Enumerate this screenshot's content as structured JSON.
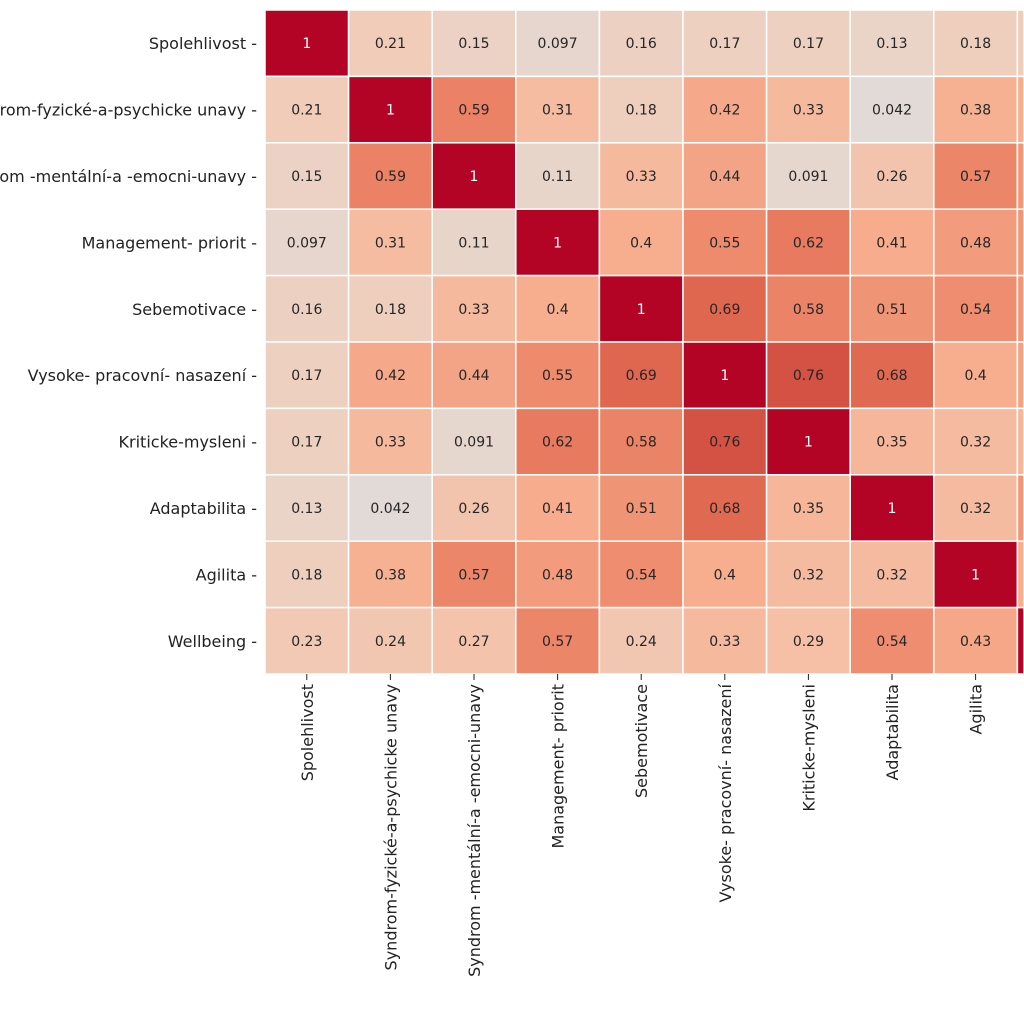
{
  "chart_data": {
    "type": "heatmap",
    "title": "",
    "colormap": "coolwarm",
    "vmin": -1,
    "vmax": 1,
    "colors": {
      "low": "#3b4cc0",
      "mid": "#dddddd",
      "high": "#b40426",
      "cell_border": "#ffffff"
    },
    "row_labels": [
      "Spolehlivost",
      "Syndrom-fyzické-a-psychicke unavy",
      "Syndrom -mentální-a -emocni-unavy",
      "Management- priorit",
      "Sebemotivace",
      "Vysoke- pracovní- nasazení",
      "Kriticke-mysleni",
      "Adaptabilita",
      "Agilita",
      "Wellbeing"
    ],
    "col_labels": [
      "Spolehlivost",
      "Syndrom-fyzické-a-psychicke unavy",
      "Syndrom -mentální-a -emocni-unavy",
      "Management- priorit",
      "Sebemotivace",
      "Vysoke- pracovní- nasazení",
      "Kriticke-mysleni",
      "Adaptabilita",
      "Agilita"
    ],
    "values": [
      [
        "1",
        "0.21",
        "0.15",
        "0.097",
        "0.16",
        "0.17",
        "0.17",
        "0.13",
        "0.18"
      ],
      [
        "0.21",
        "1",
        "0.59",
        "0.31",
        "0.18",
        "0.42",
        "0.33",
        "0.042",
        "0.38"
      ],
      [
        "0.15",
        "0.59",
        "1",
        "0.11",
        "0.33",
        "0.44",
        "0.091",
        "0.26",
        "0.57"
      ],
      [
        "0.097",
        "0.31",
        "0.11",
        "1",
        "0.4",
        "0.55",
        "0.62",
        "0.41",
        "0.48"
      ],
      [
        "0.16",
        "0.18",
        "0.33",
        "0.4",
        "1",
        "0.69",
        "0.58",
        "0.51",
        "0.54"
      ],
      [
        "0.17",
        "0.42",
        "0.44",
        "0.55",
        "0.69",
        "1",
        "0.76",
        "0.68",
        "0.4"
      ],
      [
        "0.17",
        "0.33",
        "0.091",
        "0.62",
        "0.58",
        "0.76",
        "1",
        "0.35",
        "0.32"
      ],
      [
        "0.13",
        "0.042",
        "0.26",
        "0.41",
        "0.51",
        "0.68",
        "0.35",
        "1",
        "0.32"
      ],
      [
        "0.18",
        "0.38",
        "0.57",
        "0.48",
        "0.54",
        "0.4",
        "0.32",
        "0.32",
        "1"
      ],
      [
        "0.23",
        "0.24",
        "0.27",
        "0.57",
        "0.24",
        "0.33",
        "0.29",
        "0.54",
        "0.43"
      ]
    ],
    "partial_tenth_column": {
      "note": "clipped at right edge; values not printed",
      "cell_values": [
        0.2,
        0.4,
        0.5,
        0.5,
        0.5,
        0.45,
        0.35,
        0.5,
        0.4,
        1.0
      ]
    }
  }
}
